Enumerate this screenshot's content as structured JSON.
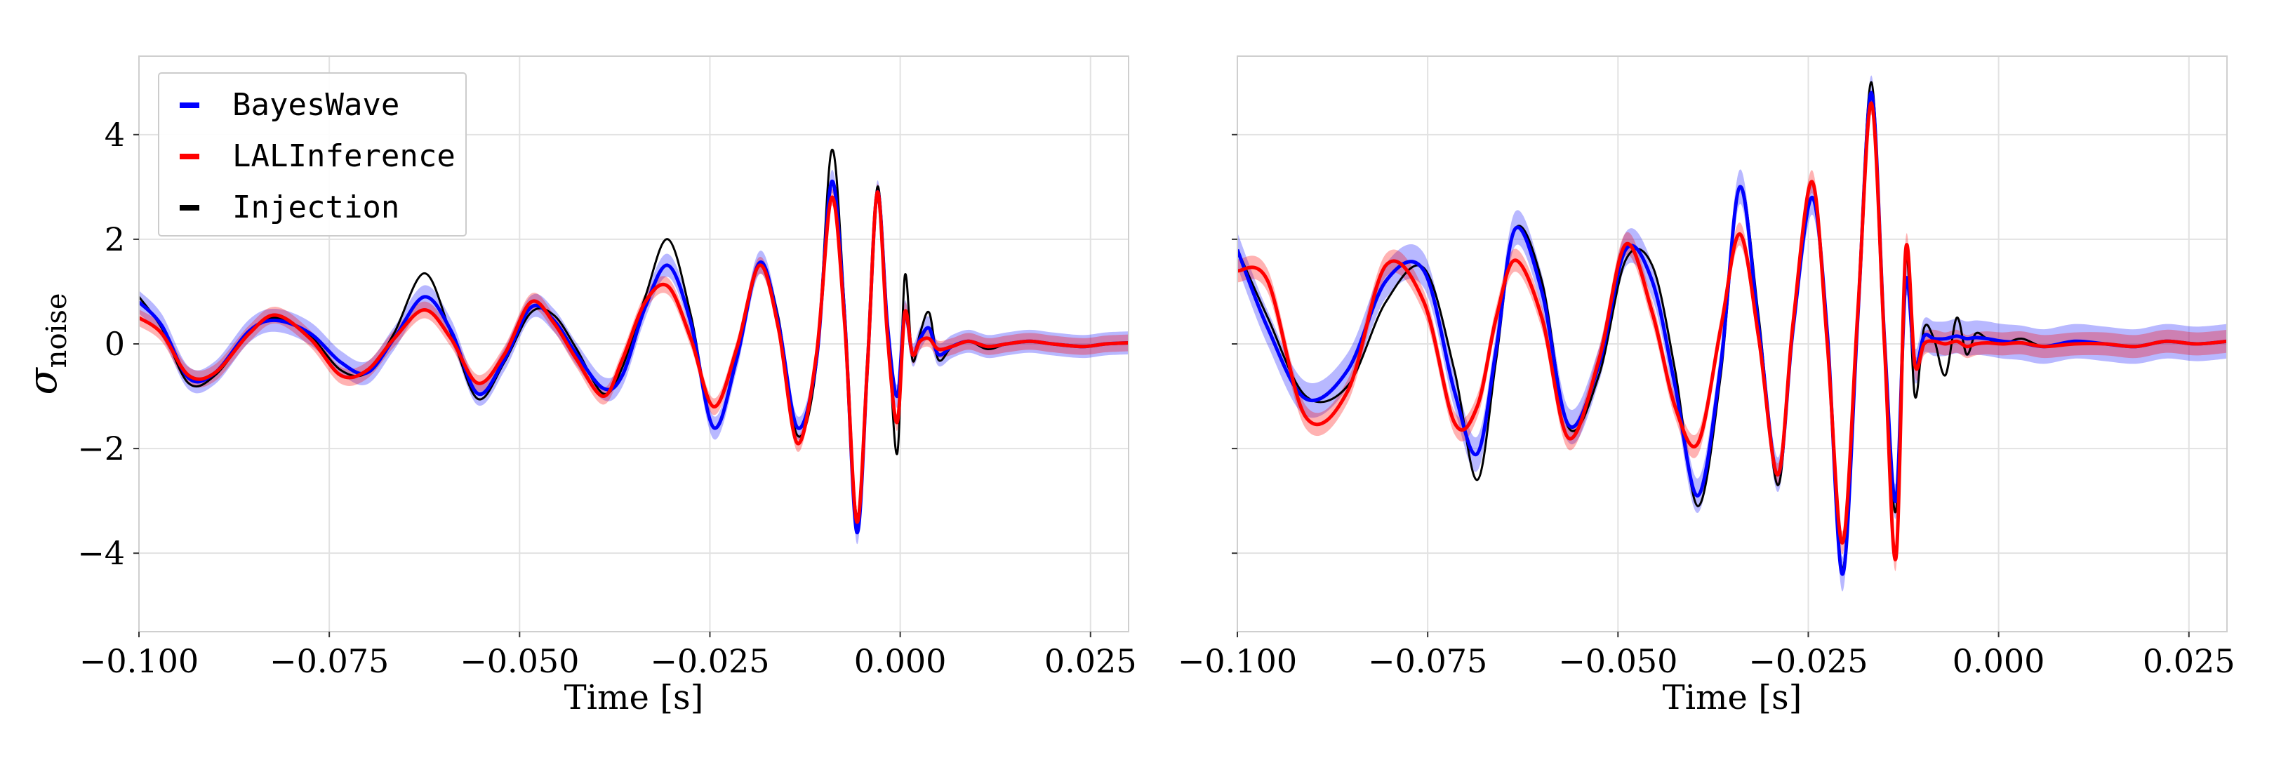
{
  "chart_data": [
    {
      "type": "line",
      "panel": "left",
      "xlabel": "Time [s]",
      "ylabel": "σ_noise",
      "xlim": [
        -0.1,
        0.03
      ],
      "ylim": [
        -5.5,
        5.5
      ],
      "xticks": [
        -0.1,
        -0.075,
        -0.05,
        -0.025,
        0.0,
        0.025
      ],
      "xtick_labels": [
        "−0.100",
        "−0.075",
        "−0.050",
        "−0.025",
        "0.000",
        "0.025"
      ],
      "yticks": [
        -4,
        -2,
        0,
        2,
        4
      ],
      "ytick_labels": [
        "−4",
        "−2",
        "0",
        "2",
        "4"
      ],
      "grid": true,
      "legend": {
        "placement": "top-left",
        "entries": [
          {
            "label": "BayesWave",
            "color": "#0000ff"
          },
          {
            "label": "LALInference",
            "color": "#ff0000"
          },
          {
            "label": "Injection",
            "color": "#000000"
          }
        ]
      },
      "series": [
        {
          "name": "Injection",
          "color": "#000000",
          "band": 0,
          "x": [
            -0.1,
            -0.097,
            -0.0935,
            -0.09,
            -0.0855,
            -0.082,
            -0.0775,
            -0.0735,
            -0.07,
            -0.0665,
            -0.0625,
            -0.059,
            -0.0555,
            -0.052,
            -0.0485,
            -0.0455,
            -0.0425,
            -0.039,
            -0.0365,
            -0.0335,
            -0.0305,
            -0.0275,
            -0.0245,
            -0.0215,
            -0.0185,
            -0.016,
            -0.0135,
            -0.011,
            -0.009,
            -0.0073,
            -0.0057,
            -0.0043,
            -0.003,
            -0.0017,
            -0.0004,
            0.0006,
            0.0016,
            0.0026,
            0.0038,
            0.005,
            0.0068,
            0.009,
            0.0115,
            0.014,
            0.017,
            0.02,
            0.024,
            0.027,
            0.03
          ],
          "y": [
            0.9,
            0.3,
            -0.75,
            -0.6,
            0.2,
            0.5,
            0.15,
            -0.5,
            -0.55,
            0.2,
            1.35,
            0.2,
            -1.05,
            -0.35,
            0.6,
            0.55,
            -0.1,
            -0.95,
            -0.45,
            0.9,
            2.0,
            0.55,
            -1.6,
            -0.3,
            1.5,
            0.5,
            -1.75,
            -0.4,
            3.7,
            0.7,
            -3.3,
            -0.5,
            3.0,
            0.5,
            -2.1,
            1.3,
            -0.3,
            0.2,
            0.6,
            -0.3,
            -0.05,
            0.05,
            -0.1,
            0.0,
            0.05,
            0.0,
            -0.05,
            0.0,
            0.02
          ]
        },
        {
          "name": "BayesWave",
          "color": "#0000ff",
          "band": 0.22,
          "x": [
            -0.1,
            -0.097,
            -0.0935,
            -0.09,
            -0.0855,
            -0.082,
            -0.0775,
            -0.0735,
            -0.07,
            -0.0665,
            -0.0625,
            -0.059,
            -0.0555,
            -0.052,
            -0.0485,
            -0.0455,
            -0.0425,
            -0.039,
            -0.0365,
            -0.0335,
            -0.0305,
            -0.0275,
            -0.0245,
            -0.0215,
            -0.0185,
            -0.016,
            -0.0135,
            -0.011,
            -0.009,
            -0.0073,
            -0.0057,
            -0.0043,
            -0.003,
            -0.0017,
            -0.0004,
            0.0006,
            0.0016,
            0.0026,
            0.0038,
            0.005,
            0.0068,
            0.009,
            0.0115,
            0.014,
            0.017,
            0.02,
            0.024,
            0.027,
            0.03
          ],
          "y": [
            0.8,
            0.35,
            -0.65,
            -0.55,
            0.25,
            0.45,
            0.2,
            -0.35,
            -0.55,
            0.1,
            0.9,
            0.25,
            -0.95,
            -0.3,
            0.7,
            0.45,
            -0.2,
            -0.85,
            -0.6,
            0.7,
            1.5,
            0.4,
            -1.6,
            -0.3,
            1.55,
            0.4,
            -1.6,
            -0.3,
            3.1,
            0.5,
            -3.6,
            -0.4,
            2.9,
            0.4,
            -1.0,
            0.6,
            -0.2,
            0.1,
            0.3,
            -0.2,
            -0.05,
            0.05,
            -0.05,
            0.0,
            0.05,
            0.0,
            -0.05,
            0.0,
            0.02
          ]
        },
        {
          "name": "LALInference",
          "color": "#ff0000",
          "band": 0.16,
          "x": [
            -0.1,
            -0.097,
            -0.0935,
            -0.09,
            -0.0855,
            -0.082,
            -0.0775,
            -0.0735,
            -0.07,
            -0.0665,
            -0.0625,
            -0.059,
            -0.0555,
            -0.052,
            -0.0485,
            -0.0455,
            -0.0425,
            -0.039,
            -0.0365,
            -0.0335,
            -0.0305,
            -0.0275,
            -0.0245,
            -0.0215,
            -0.0185,
            -0.016,
            -0.0135,
            -0.011,
            -0.009,
            -0.0073,
            -0.0057,
            -0.0043,
            -0.003,
            -0.0017,
            -0.0004,
            0.0006,
            0.0016,
            0.0026,
            0.0038,
            0.005,
            0.0068,
            0.009,
            0.0115,
            0.014,
            0.017,
            0.02,
            0.024,
            0.027,
            0.03
          ],
          "y": [
            0.5,
            0.2,
            -0.6,
            -0.55,
            0.2,
            0.55,
            0.1,
            -0.6,
            -0.5,
            0.1,
            0.65,
            0.1,
            -0.75,
            -0.2,
            0.8,
            0.4,
            -0.3,
            -1.0,
            -0.3,
            0.8,
            1.1,
            0.1,
            -1.2,
            -0.1,
            1.5,
            0.3,
            -1.9,
            -0.2,
            2.8,
            0.4,
            -3.4,
            -0.4,
            2.9,
            0.2,
            -1.5,
            0.6,
            -0.2,
            0.05,
            0.1,
            -0.1,
            -0.05,
            0.05,
            -0.05,
            0.0,
            0.05,
            0.0,
            -0.05,
            0.0,
            0.02
          ]
        }
      ]
    },
    {
      "type": "line",
      "panel": "right",
      "xlabel": "Time [s]",
      "ylabel": "",
      "xlim": [
        -0.1,
        0.03
      ],
      "ylim": [
        -5.5,
        5.5
      ],
      "xticks": [
        -0.1,
        -0.075,
        -0.05,
        -0.025,
        0.0,
        0.025
      ],
      "xtick_labels": [
        "−0.100",
        "−0.075",
        "−0.050",
        "−0.025",
        "0.000",
        "0.025"
      ],
      "yticks": [
        -4,
        -2,
        0,
        2,
        4
      ],
      "grid": true,
      "series": [
        {
          "name": "Injection",
          "color": "#000000",
          "band": 0,
          "x": [
            -0.1,
            -0.096,
            -0.091,
            -0.0855,
            -0.0805,
            -0.0755,
            -0.0715,
            -0.0685,
            -0.066,
            -0.0635,
            -0.06,
            -0.0565,
            -0.0525,
            -0.049,
            -0.0455,
            -0.0425,
            -0.0395,
            -0.0365,
            -0.034,
            -0.0315,
            -0.029,
            -0.027,
            -0.0245,
            -0.0225,
            -0.0205,
            -0.0185,
            -0.0167,
            -0.015,
            -0.0135,
            -0.0122,
            -0.011,
            -0.0098,
            -0.0085,
            -0.007,
            -0.0055,
            -0.0042,
            -0.003,
            -0.0015,
            0.0005,
            0.003,
            0.006,
            0.01,
            0.014,
            0.018,
            0.022,
            0.026,
            0.03
          ],
          "y": [
            1.8,
            0.5,
            -1.0,
            -0.8,
            0.8,
            1.45,
            -0.5,
            -2.6,
            -0.3,
            2.2,
            1.2,
            -1.6,
            -0.6,
            1.6,
            1.5,
            -0.5,
            -3.1,
            -0.6,
            3.0,
            0.5,
            -2.7,
            0.4,
            2.8,
            0.3,
            -4.3,
            0.7,
            5.0,
            0.2,
            -3.2,
            1.7,
            -1.0,
            0.3,
            0.1,
            -0.6,
            0.5,
            -0.2,
            0.2,
            0.1,
            0.0,
            0.1,
            -0.05,
            0.05,
            0.0,
            -0.05,
            0.05,
            0.0,
            0.05
          ]
        },
        {
          "name": "BayesWave",
          "color": "#0000ff",
          "band": 0.33,
          "x": [
            -0.1,
            -0.096,
            -0.091,
            -0.0855,
            -0.0805,
            -0.0755,
            -0.0715,
            -0.0685,
            -0.066,
            -0.0635,
            -0.06,
            -0.0565,
            -0.0525,
            -0.049,
            -0.0455,
            -0.0425,
            -0.0395,
            -0.0365,
            -0.034,
            -0.0315,
            -0.029,
            -0.027,
            -0.0245,
            -0.0225,
            -0.0205,
            -0.0185,
            -0.0167,
            -0.015,
            -0.0135,
            -0.0122,
            -0.011,
            -0.0098,
            -0.0085,
            -0.007,
            -0.0055,
            -0.0042,
            -0.003,
            -0.0015,
            0.0005,
            0.003,
            0.006,
            0.01,
            0.014,
            0.018,
            0.022,
            0.026,
            0.03
          ],
          "y": [
            1.8,
            0.3,
            -1.05,
            -0.5,
            1.2,
            1.4,
            -0.9,
            -2.1,
            -0.1,
            2.2,
            1.0,
            -1.55,
            -0.4,
            1.8,
            1.2,
            -0.8,
            -2.9,
            -0.4,
            3.0,
            0.3,
            -2.5,
            0.3,
            2.8,
            0.2,
            -4.4,
            0.5,
            4.8,
            0.1,
            -3.0,
            1.2,
            -0.4,
            0.15,
            0.1,
            0.1,
            0.15,
            0.1,
            0.12,
            0.1,
            0.05,
            0.02,
            -0.05,
            0.05,
            0.0,
            -0.05,
            0.05,
            0.0,
            0.05
          ]
        },
        {
          "name": "LALInference",
          "color": "#ff0000",
          "band": 0.22,
          "x": [
            -0.1,
            -0.096,
            -0.091,
            -0.0855,
            -0.0805,
            -0.0755,
            -0.0715,
            -0.0685,
            -0.066,
            -0.0635,
            -0.06,
            -0.0565,
            -0.0525,
            -0.049,
            -0.0455,
            -0.0425,
            -0.0395,
            -0.0365,
            -0.034,
            -0.0315,
            -0.029,
            -0.027,
            -0.0245,
            -0.0225,
            -0.0205,
            -0.0185,
            -0.0167,
            -0.015,
            -0.0135,
            -0.0122,
            -0.011,
            -0.0098,
            -0.0085,
            -0.007,
            -0.0055,
            -0.0042,
            -0.003,
            -0.0015,
            0.0005,
            0.003,
            0.006,
            0.01,
            0.014,
            0.018,
            0.022,
            0.026,
            0.03
          ],
          "y": [
            1.4,
            1.2,
            -1.4,
            -0.9,
            1.5,
            0.8,
            -1.5,
            -1.2,
            0.5,
            1.6,
            0.5,
            -1.8,
            -0.3,
            1.9,
            0.6,
            -1.2,
            -1.9,
            0.3,
            2.1,
            0.1,
            -2.5,
            0.4,
            3.1,
            0.0,
            -3.8,
            0.6,
            4.6,
            0.0,
            -4.1,
            1.8,
            -0.4,
            0.0,
            0.05,
            0.0,
            0.05,
            -0.05,
            0.0,
            0.02,
            0.0,
            0.02,
            -0.05,
            0.0,
            0.0,
            -0.05,
            0.05,
            0.0,
            0.05
          ]
        }
      ]
    }
  ]
}
